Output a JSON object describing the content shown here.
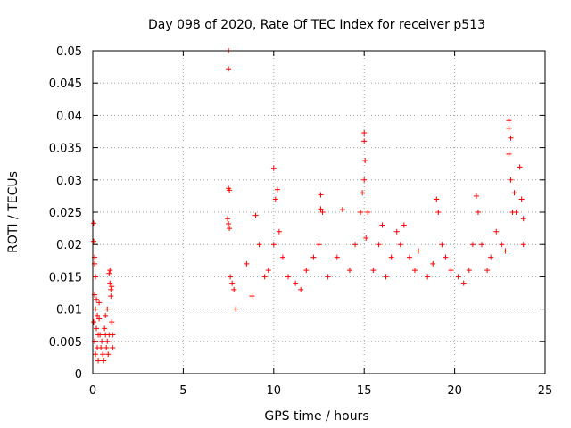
{
  "chart_data": {
    "type": "scatter",
    "title": "Day 098 of 2020, Rate Of TEC Index for receiver p513",
    "xlabel": "GPS time / hours",
    "ylabel": "ROTI / TECUs",
    "xlim": [
      0,
      25
    ],
    "ylim": [
      0,
      0.05
    ],
    "x_ticks": [
      0,
      5,
      10,
      15,
      20,
      25
    ],
    "x_tick_labels": [
      "0",
      "5",
      "10",
      "15",
      "20",
      "25"
    ],
    "y_ticks": [
      0,
      0.005,
      0.01,
      0.015,
      0.02,
      0.025,
      0.03,
      0.035,
      0.04,
      0.045,
      0.05
    ],
    "y_tick_labels": [
      "0",
      "0.005",
      "0.01",
      "0.015",
      "0.02",
      "0.025",
      "0.03",
      "0.035",
      "0.04",
      "0.045",
      "0.05"
    ],
    "grid": true,
    "marker": "+",
    "color": "#ff0000",
    "series": [
      {
        "name": "ROTI",
        "points": [
          [
            0.05,
            0.0233
          ],
          [
            0.05,
            0.0205
          ],
          [
            0.1,
            0.018
          ],
          [
            0.1,
            0.017
          ],
          [
            0.15,
            0.015
          ],
          [
            0.1,
            0.0122
          ],
          [
            0.2,
            0.0115
          ],
          [
            0.15,
            0.01
          ],
          [
            0.25,
            0.009
          ],
          [
            0.05,
            0.008
          ],
          [
            0.2,
            0.007
          ],
          [
            0.3,
            0.006
          ],
          [
            0.1,
            0.005
          ],
          [
            0.25,
            0.004
          ],
          [
            0.15,
            0.003
          ],
          [
            0.3,
            0.002
          ],
          [
            0.35,
            0.011
          ],
          [
            0.35,
            0.0085
          ],
          [
            0.4,
            0.006
          ],
          [
            0.45,
            0.004
          ],
          [
            0.5,
            0.005
          ],
          [
            0.55,
            0.003
          ],
          [
            0.6,
            0.002
          ],
          [
            0.65,
            0.007
          ],
          [
            0.7,
            0.006
          ],
          [
            0.7,
            0.009
          ],
          [
            0.75,
            0.004
          ],
          [
            0.8,
            0.01
          ],
          [
            0.8,
            0.005
          ],
          [
            0.85,
            0.003
          ],
          [
            0.9,
            0.006
          ],
          [
            0.9,
            0.0155
          ],
          [
            0.95,
            0.016
          ],
          [
            0.95,
            0.014
          ],
          [
            1.0,
            0.013
          ],
          [
            1.0,
            0.012
          ],
          [
            1.05,
            0.0135
          ],
          [
            1.05,
            0.008
          ],
          [
            1.1,
            0.006
          ],
          [
            1.1,
            0.004
          ],
          [
            7.5,
            0.05
          ],
          [
            7.5,
            0.0472
          ],
          [
            7.5,
            0.0287
          ],
          [
            7.55,
            0.0284
          ],
          [
            7.45,
            0.024
          ],
          [
            7.5,
            0.0232
          ],
          [
            7.55,
            0.0225
          ],
          [
            7.6,
            0.015
          ],
          [
            7.7,
            0.014
          ],
          [
            7.8,
            0.013
          ],
          [
            7.9,
            0.01
          ],
          [
            8.5,
            0.017
          ],
          [
            8.8,
            0.012
          ],
          [
            9.0,
            0.0245
          ],
          [
            9.2,
            0.02
          ],
          [
            9.5,
            0.015
          ],
          [
            9.7,
            0.016
          ],
          [
            10.0,
            0.02
          ],
          [
            10.0,
            0.0318
          ],
          [
            10.1,
            0.027
          ],
          [
            10.2,
            0.0285
          ],
          [
            10.3,
            0.022
          ],
          [
            10.5,
            0.018
          ],
          [
            10.8,
            0.015
          ],
          [
            11.2,
            0.014
          ],
          [
            11.5,
            0.013
          ],
          [
            11.8,
            0.016
          ],
          [
            12.2,
            0.018
          ],
          [
            12.5,
            0.02
          ],
          [
            12.6,
            0.0277
          ],
          [
            12.6,
            0.0255
          ],
          [
            12.7,
            0.025
          ],
          [
            13.0,
            0.015
          ],
          [
            13.5,
            0.018
          ],
          [
            13.8,
            0.0254
          ],
          [
            14.2,
            0.016
          ],
          [
            14.5,
            0.02
          ],
          [
            14.8,
            0.025
          ],
          [
            15.0,
            0.0373
          ],
          [
            15.0,
            0.036
          ],
          [
            15.05,
            0.033
          ],
          [
            15.0,
            0.03
          ],
          [
            14.9,
            0.028
          ],
          [
            15.1,
            0.021
          ],
          [
            15.2,
            0.025
          ],
          [
            15.5,
            0.016
          ],
          [
            15.8,
            0.02
          ],
          [
            16.0,
            0.023
          ],
          [
            16.2,
            0.015
          ],
          [
            16.5,
            0.018
          ],
          [
            16.8,
            0.022
          ],
          [
            17.0,
            0.02
          ],
          [
            17.2,
            0.023
          ],
          [
            17.5,
            0.018
          ],
          [
            17.8,
            0.016
          ],
          [
            18.0,
            0.019
          ],
          [
            18.5,
            0.015
          ],
          [
            18.8,
            0.017
          ],
          [
            19.0,
            0.027
          ],
          [
            19.1,
            0.025
          ],
          [
            19.3,
            0.02
          ],
          [
            19.5,
            0.018
          ],
          [
            19.8,
            0.016
          ],
          [
            20.2,
            0.015
          ],
          [
            20.5,
            0.014
          ],
          [
            20.8,
            0.016
          ],
          [
            21.0,
            0.02
          ],
          [
            21.2,
            0.0275
          ],
          [
            21.3,
            0.025
          ],
          [
            21.5,
            0.02
          ],
          [
            21.8,
            0.016
          ],
          [
            22.0,
            0.018
          ],
          [
            22.3,
            0.022
          ],
          [
            22.6,
            0.02
          ],
          [
            22.8,
            0.019
          ],
          [
            23.0,
            0.0392
          ],
          [
            23.0,
            0.038
          ],
          [
            23.1,
            0.0365
          ],
          [
            23.0,
            0.034
          ],
          [
            23.1,
            0.03
          ],
          [
            23.2,
            0.025
          ],
          [
            23.3,
            0.028
          ],
          [
            23.4,
            0.025
          ],
          [
            23.6,
            0.032
          ],
          [
            23.7,
            0.027
          ],
          [
            23.8,
            0.024
          ],
          [
            23.8,
            0.02
          ]
        ]
      }
    ]
  }
}
